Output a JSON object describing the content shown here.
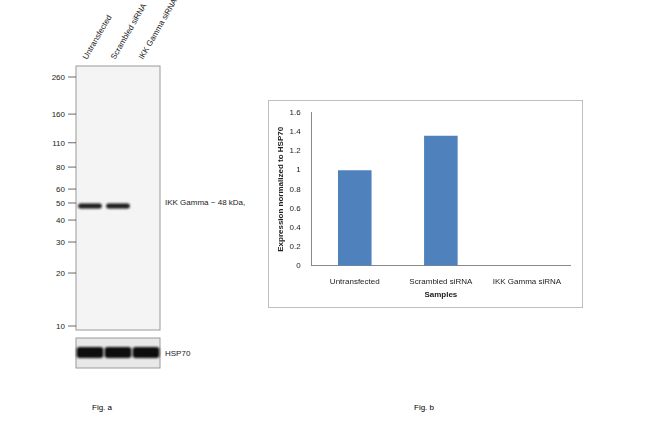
{
  "chart_data": {
    "type": "bar",
    "x_label": "Samples",
    "y_label": "Expression normalized to HSP70",
    "categories": [
      "Untransfected",
      "Scrambled siRNA",
      "IKK Gamma siRNA"
    ],
    "values": [
      1.0,
      1.36,
      0
    ],
    "color": "#4f81bd",
    "ylim": [
      0,
      1.6
    ],
    "yticks": [
      0,
      0.2,
      0.4,
      0.6,
      0.8,
      1,
      1.2,
      1.4,
      1.6
    ],
    "grid": false
  },
  "blot": {
    "lanes": [
      "Untransfected",
      "Scrambled siRNA",
      "IKK Gamma siRNA"
    ],
    "markers": [
      260,
      160,
      110,
      80,
      60,
      50,
      40,
      30,
      20,
      10
    ],
    "target": {
      "label": "IKK Gamma ~ 48 kDa,",
      "kda": 48,
      "present": [
        true,
        true,
        false
      ]
    },
    "loading_control": {
      "label": "HSP70",
      "present": [
        true,
        true,
        true
      ]
    }
  },
  "captions": [
    "Fig. a",
    "Fig. b"
  ]
}
